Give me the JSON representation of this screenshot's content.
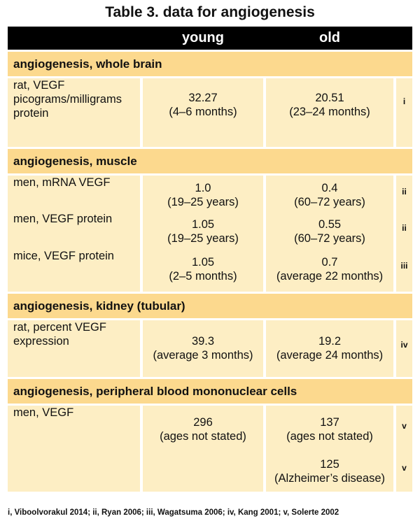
{
  "title": "Table 3. data for angiogenesis",
  "columns": [
    "",
    "young",
    "old",
    ""
  ],
  "sections": [
    {
      "heading": "angiogenesis, whole brain",
      "rows": [
        {
          "label": "rat, VEGF picograms/milligrams protein",
          "young": "32.27",
          "young_note": "(4–6 months)",
          "old": "20.51",
          "old_note": "(23–24 months)",
          "ref": "i"
        }
      ]
    },
    {
      "heading": "angiogenesis, muscle",
      "rows": [
        {
          "label": "men, mRNA VEGF",
          "young": "1.0",
          "young_note": "(19–25 years)",
          "old": "0.4",
          "old_note": "(60–72 years)",
          "ref": "ii"
        },
        {
          "label": "men, VEGF protein",
          "young": "1.05",
          "young_note": "(19–25 years)",
          "old": "0.55",
          "old_note": "(60–72 years)",
          "ref": "ii"
        },
        {
          "label": "mice, VEGF protein",
          "young": "1.05",
          "young_note": "(2–5 months)",
          "old": "0.7",
          "old_note": "(average 22 months)",
          "ref": "iii"
        }
      ]
    },
    {
      "heading": "angiogenesis, kidney (tubular)",
      "rows": [
        {
          "label": "rat, percent VEGF expression",
          "young": "39.3",
          "young_note": "(average 3 months)",
          "old": "19.2",
          "old_note": "(average 24 months)",
          "ref": "iv"
        }
      ]
    },
    {
      "heading": "angiogenesis, peripheral blood mononuclear cells",
      "rows": [
        {
          "label": "men, VEGF",
          "young": "296",
          "young_note": "(ages not stated)",
          "old": "137",
          "old_note": "(ages not stated)",
          "ref": "v"
        },
        {
          "label": "",
          "young": "",
          "young_note": "",
          "old": "125",
          "old_note": "(Alzheimer’s disease)",
          "ref": "v"
        }
      ]
    }
  ],
  "footnote": "i, Viboolvorakul 2014; ii, Ryan 2006; iii, Wagatsuma 2006; iv, Kang 2001; v, Solerte 2002"
}
